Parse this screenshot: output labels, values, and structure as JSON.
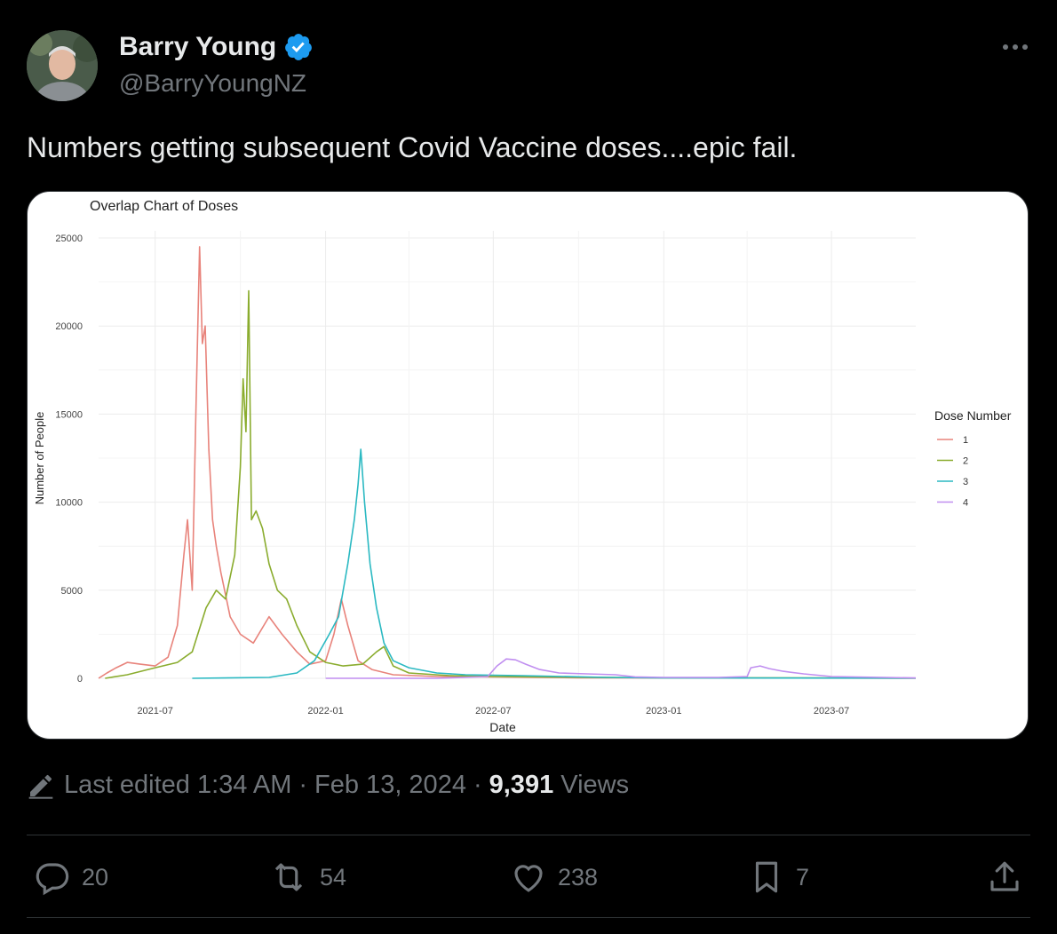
{
  "author": {
    "name": "Barry Young",
    "handle": "@BarryYoungNZ",
    "verified": true
  },
  "tweet": {
    "text": "Numbers getting subsequent Covid Vaccine doses....epic fail."
  },
  "meta": {
    "edited_label": "Last edited",
    "time": "1:34 AM",
    "date": "Feb 13, 2024",
    "views_count": "9,391",
    "views_label": "Views"
  },
  "actions": {
    "replies": "20",
    "reposts": "54",
    "likes": "238",
    "bookmarks": "7"
  },
  "colors": {
    "background": "#000000",
    "text_primary": "#e7e9ea",
    "text_secondary": "#71767b",
    "verified_badge": "#1d9bf0",
    "dose1": "#e8837b",
    "dose2": "#8aac2e",
    "dose3": "#2bb9c2",
    "dose4": "#c08ef0"
  },
  "chart_data": {
    "type": "line",
    "title": "Overlap Chart of Doses",
    "xlabel": "Date",
    "ylabel": "Number of People",
    "ylim": [
      0,
      25000
    ],
    "xlim": [
      "2021-05-01",
      "2023-09-30"
    ],
    "yticks": [
      "0",
      "5000",
      "10000",
      "15000",
      "20000",
      "25000"
    ],
    "xticks": [
      "2021-07",
      "2022-01",
      "2022-07",
      "2023-01",
      "2023-07"
    ],
    "grid": true,
    "legend": {
      "title": "Dose Number",
      "position": "right"
    },
    "series": [
      {
        "name": "1",
        "color": "#e8837b",
        "points": [
          [
            "2021-05-01",
            0
          ],
          [
            "2021-05-10",
            300
          ],
          [
            "2021-05-20",
            600
          ],
          [
            "2021-06-01",
            900
          ],
          [
            "2021-06-15",
            800
          ],
          [
            "2021-07-01",
            700
          ],
          [
            "2021-07-15",
            1200
          ],
          [
            "2021-07-25",
            3000
          ],
          [
            "2021-08-01",
            7000
          ],
          [
            "2021-08-05",
            9000
          ],
          [
            "2021-08-10",
            5000
          ],
          [
            "2021-08-14",
            15000
          ],
          [
            "2021-08-18",
            24500
          ],
          [
            "2021-08-21",
            19000
          ],
          [
            "2021-08-24",
            20000
          ],
          [
            "2021-08-28",
            13000
          ],
          [
            "2021-09-01",
            9000
          ],
          [
            "2021-09-05",
            7500
          ],
          [
            "2021-09-10",
            6000
          ],
          [
            "2021-09-20",
            3500
          ],
          [
            "2021-10-01",
            2500
          ],
          [
            "2021-10-15",
            2000
          ],
          [
            "2021-11-01",
            3500
          ],
          [
            "2021-11-15",
            2500
          ],
          [
            "2021-12-01",
            1500
          ],
          [
            "2021-12-15",
            800
          ],
          [
            "2022-01-01",
            1000
          ],
          [
            "2022-01-10",
            2500
          ],
          [
            "2022-01-18",
            4500
          ],
          [
            "2022-01-25",
            3000
          ],
          [
            "2022-02-05",
            1000
          ],
          [
            "2022-02-20",
            500
          ],
          [
            "2022-03-15",
            200
          ],
          [
            "2022-05-01",
            100
          ],
          [
            "2022-07-01",
            80
          ],
          [
            "2022-10-01",
            30
          ],
          [
            "2023-01-01",
            20
          ],
          [
            "2023-09-30",
            10
          ]
        ]
      },
      {
        "name": "2",
        "color": "#8aac2e",
        "points": [
          [
            "2021-05-08",
            0
          ],
          [
            "2021-06-01",
            200
          ],
          [
            "2021-07-01",
            600
          ],
          [
            "2021-07-25",
            900
          ],
          [
            "2021-08-10",
            1500
          ],
          [
            "2021-08-25",
            4000
          ],
          [
            "2021-09-05",
            5000
          ],
          [
            "2021-09-15",
            4500
          ],
          [
            "2021-09-25",
            7000
          ],
          [
            "2021-10-01",
            12000
          ],
          [
            "2021-10-04",
            17000
          ],
          [
            "2021-10-07",
            14000
          ],
          [
            "2021-10-10",
            22000
          ],
          [
            "2021-10-13",
            9000
          ],
          [
            "2021-10-18",
            9500
          ],
          [
            "2021-10-25",
            8500
          ],
          [
            "2021-11-01",
            6500
          ],
          [
            "2021-11-10",
            5000
          ],
          [
            "2021-11-20",
            4500
          ],
          [
            "2021-12-01",
            3000
          ],
          [
            "2021-12-15",
            1500
          ],
          [
            "2022-01-01",
            900
          ],
          [
            "2022-01-20",
            700
          ],
          [
            "2022-02-10",
            800
          ],
          [
            "2022-02-25",
            1500
          ],
          [
            "2022-03-05",
            1800
          ],
          [
            "2022-03-15",
            700
          ],
          [
            "2022-04-01",
            300
          ],
          [
            "2022-05-15",
            150
          ],
          [
            "2022-07-01",
            100
          ],
          [
            "2022-10-01",
            60
          ],
          [
            "2023-01-01",
            30
          ],
          [
            "2023-09-30",
            10
          ]
        ]
      },
      {
        "name": "3",
        "color": "#2bb9c2",
        "points": [
          [
            "2021-08-10",
            0
          ],
          [
            "2021-11-01",
            50
          ],
          [
            "2021-12-01",
            300
          ],
          [
            "2021-12-20",
            1000
          ],
          [
            "2022-01-05",
            2500
          ],
          [
            "2022-01-15",
            3500
          ],
          [
            "2022-01-25",
            6500
          ],
          [
            "2022-02-01",
            9000
          ],
          [
            "2022-02-05",
            11000
          ],
          [
            "2022-02-08",
            13000
          ],
          [
            "2022-02-12",
            10000
          ],
          [
            "2022-02-18",
            6500
          ],
          [
            "2022-02-25",
            4000
          ],
          [
            "2022-03-05",
            2000
          ],
          [
            "2022-03-15",
            1000
          ],
          [
            "2022-04-01",
            600
          ],
          [
            "2022-05-01",
            300
          ],
          [
            "2022-06-01",
            200
          ],
          [
            "2022-08-01",
            150
          ],
          [
            "2022-11-01",
            50
          ],
          [
            "2023-01-01",
            20
          ],
          [
            "2023-09-30",
            10
          ]
        ]
      },
      {
        "name": "4",
        "color": "#c08ef0",
        "points": [
          [
            "2022-01-01",
            0
          ],
          [
            "2022-05-01",
            0
          ],
          [
            "2022-06-25",
            100
          ],
          [
            "2022-07-05",
            700
          ],
          [
            "2022-07-15",
            1100
          ],
          [
            "2022-07-25",
            1050
          ],
          [
            "2022-08-05",
            800
          ],
          [
            "2022-08-20",
            500
          ],
          [
            "2022-09-10",
            300
          ],
          [
            "2022-10-10",
            250
          ],
          [
            "2022-11-10",
            200
          ],
          [
            "2022-12-01",
            80
          ],
          [
            "2023-01-01",
            50
          ],
          [
            "2023-03-01",
            50
          ],
          [
            "2023-04-01",
            100
          ],
          [
            "2023-04-05",
            600
          ],
          [
            "2023-04-15",
            700
          ],
          [
            "2023-04-25",
            550
          ],
          [
            "2023-05-10",
            400
          ],
          [
            "2023-06-01",
            250
          ],
          [
            "2023-07-01",
            100
          ],
          [
            "2023-09-30",
            20
          ]
        ]
      }
    ]
  }
}
